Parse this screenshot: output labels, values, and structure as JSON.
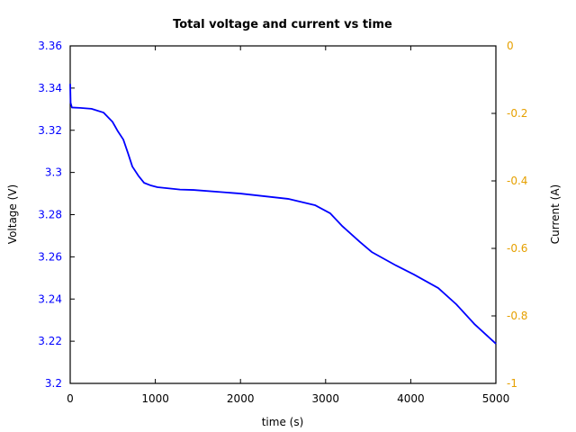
{
  "chart_data": {
    "type": "line",
    "title": "Total voltage and current vs time",
    "xlabel": "time (s)",
    "ylabel": "Voltage (V)",
    "y2label": "Current (A)",
    "xlim": [
      0,
      5000
    ],
    "ylim": [
      3.2,
      3.36
    ],
    "y2lim": [
      -1,
      0
    ],
    "grid": false,
    "legend": null,
    "x_ticks": [
      "0",
      "1000",
      "2000",
      "3000",
      "4000",
      "5000"
    ],
    "y_ticks": [
      "3.2",
      "3.22",
      "3.24",
      "3.26",
      "3.28",
      "3.3",
      "3.32",
      "3.34",
      "3.36"
    ],
    "y2_ticks": [
      "-1",
      "-0.8",
      "-0.6",
      "-0.4",
      "-0.2",
      "0"
    ],
    "colors": {
      "voltage": "#0000ff",
      "current_axis": "#e6a000",
      "axes": "#000000"
    },
    "series": [
      {
        "name": "Voltage",
        "axis": "left",
        "color": "#0000ff",
        "x": [
          0,
          5,
          20,
          116,
          250,
          391,
          497,
          560,
          624,
          680,
          730,
          800,
          867,
          950,
          1025,
          1290,
          1448,
          1998,
          2558,
          2875,
          3055,
          3192,
          3404,
          3541,
          3827,
          4038,
          4323,
          4535,
          4746,
          5000
        ],
        "values": [
          3.342,
          3.333,
          3.3308,
          3.3306,
          3.3302,
          3.3284,
          3.324,
          3.3195,
          3.3156,
          3.309,
          3.3028,
          3.2985,
          3.2951,
          3.2938,
          3.293,
          3.2919,
          3.2917,
          3.29,
          3.2875,
          3.2845,
          3.2806,
          3.2747,
          3.267,
          3.2623,
          3.2559,
          3.2516,
          3.2452,
          3.2375,
          3.2282,
          3.2188
        ]
      }
    ]
  }
}
